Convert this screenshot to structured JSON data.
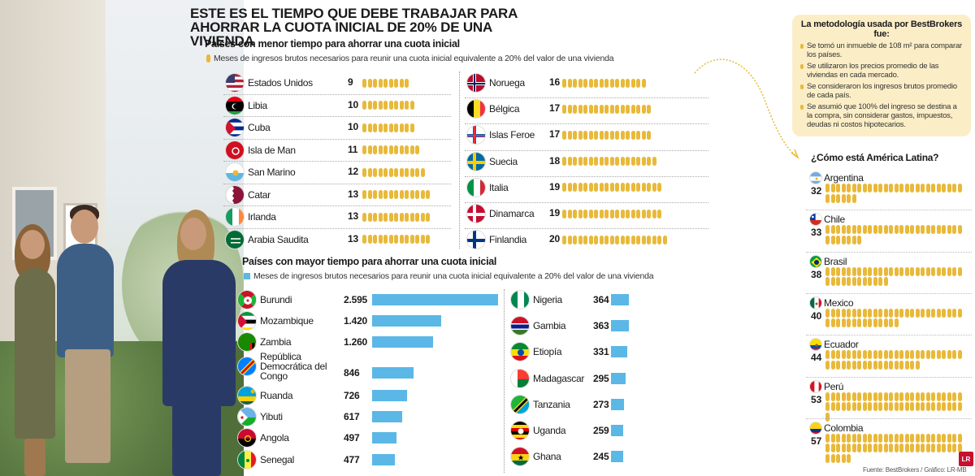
{
  "title": "ESTE ES EL TIEMPO QUE DEBE TRABAJAR PARA AHORRAR LA CUOTA INICIAL DE 20% DE UNA VIVIENDA",
  "colors": {
    "dots": "#e8b93a",
    "bars": "#5bb7e6",
    "box": "#fbeec7",
    "logo": "#c8102e"
  },
  "chart_data": [
    {
      "type": "bar",
      "title": "Países con menor tiempo para ahorrar una cuota inicial",
      "legend": "Meses de ingresos brutos necesarios para reunir una cuota inicial equivalente a 20% del valor de una vivienda",
      "categories": [
        "Estados Unidos",
        "Libia",
        "Cuba",
        "Isla de Man",
        "San Marino",
        "Catar",
        "Irlanda",
        "Arabia Saudita",
        "Noruega",
        "Bélgica",
        "Islas Feroe",
        "Suecia",
        "Italia",
        "Dinamarca",
        "Finlandia"
      ],
      "values": [
        9,
        10,
        10,
        11,
        12,
        13,
        13,
        13,
        16,
        17,
        17,
        18,
        19,
        19,
        20
      ],
      "flag_icons": [
        "us-flag-icon",
        "libya-flag-icon",
        "cuba-flag-icon",
        "isle-of-man-flag-icon",
        "san-marino-flag-icon",
        "qatar-flag-icon",
        "ireland-flag-icon",
        "saudi-arabia-flag-icon",
        "norway-flag-icon",
        "belgium-flag-icon",
        "faroe-islands-flag-icon",
        "sweden-flag-icon",
        "italy-flag-icon",
        "denmark-flag-icon",
        "finland-flag-icon"
      ]
    },
    {
      "type": "bar",
      "title": "Países con mayor tiempo para ahorrar una cuota inicial",
      "legend": "Meses de ingresos brutos necesarios para reunir una cuota inicial equivalente a 20% del valor de una vivienda",
      "categories": [
        "Burundi",
        "Mozambique",
        "Zambia",
        "República Democrática del Congo",
        "Ruanda",
        "Yibuti",
        "Angola",
        "Senegal",
        "Nigeria",
        "Gambia",
        "Etiopía",
        "Madagascar",
        "Tanzania",
        "Uganda",
        "Ghana"
      ],
      "labels": [
        "2.595",
        "1.420",
        "1.260",
        "846",
        "726",
        "617",
        "497",
        "477",
        "364",
        "363",
        "331",
        "295",
        "273",
        "259",
        "245"
      ],
      "values": [
        2595,
        1420,
        1260,
        846,
        726,
        617,
        497,
        477,
        364,
        363,
        331,
        295,
        273,
        259,
        245
      ],
      "flag_icons": [
        "burundi-flag-icon",
        "mozambique-flag-icon",
        "zambia-flag-icon",
        "dr-congo-flag-icon",
        "rwanda-flag-icon",
        "djibouti-flag-icon",
        "angola-flag-icon",
        "senegal-flag-icon",
        "nigeria-flag-icon",
        "gambia-flag-icon",
        "ethiopia-flag-icon",
        "madagascar-flag-icon",
        "tanzania-flag-icon",
        "uganda-flag-icon",
        "ghana-flag-icon"
      ]
    },
    {
      "type": "bar",
      "title": "¿Cómo está América Latina?",
      "categories": [
        "Argentina",
        "Chile",
        "Brasil",
        "Mexico",
        "Ecuador",
        "Perú",
        "Colombia"
      ],
      "values": [
        32,
        33,
        38,
        40,
        44,
        53,
        57
      ],
      "flag_icons": [
        "argentina-flag-icon",
        "chile-flag-icon",
        "brazil-flag-icon",
        "mexico-flag-icon",
        "ecuador-flag-icon",
        "peru-flag-icon",
        "colombia-flag-icon"
      ]
    }
  ],
  "methodology": {
    "title": "La metodología usada por BestBrokers fue:",
    "items": [
      "Se tomó un inmueble de 108 m² para comparar los países.",
      "Se utilizaron los precios promedio de las viviendas en cada mercado.",
      "Se consideraron los ingresos brutos promedio de cada país.",
      "Se asumió que 100% del ingreso se destina a la compra, sin considerar gastos, impuestos, deudas ni costos hipotecarios."
    ]
  },
  "source": "Fuente: BestBrokers / Gráfico: LR-MB",
  "logo": "LR"
}
